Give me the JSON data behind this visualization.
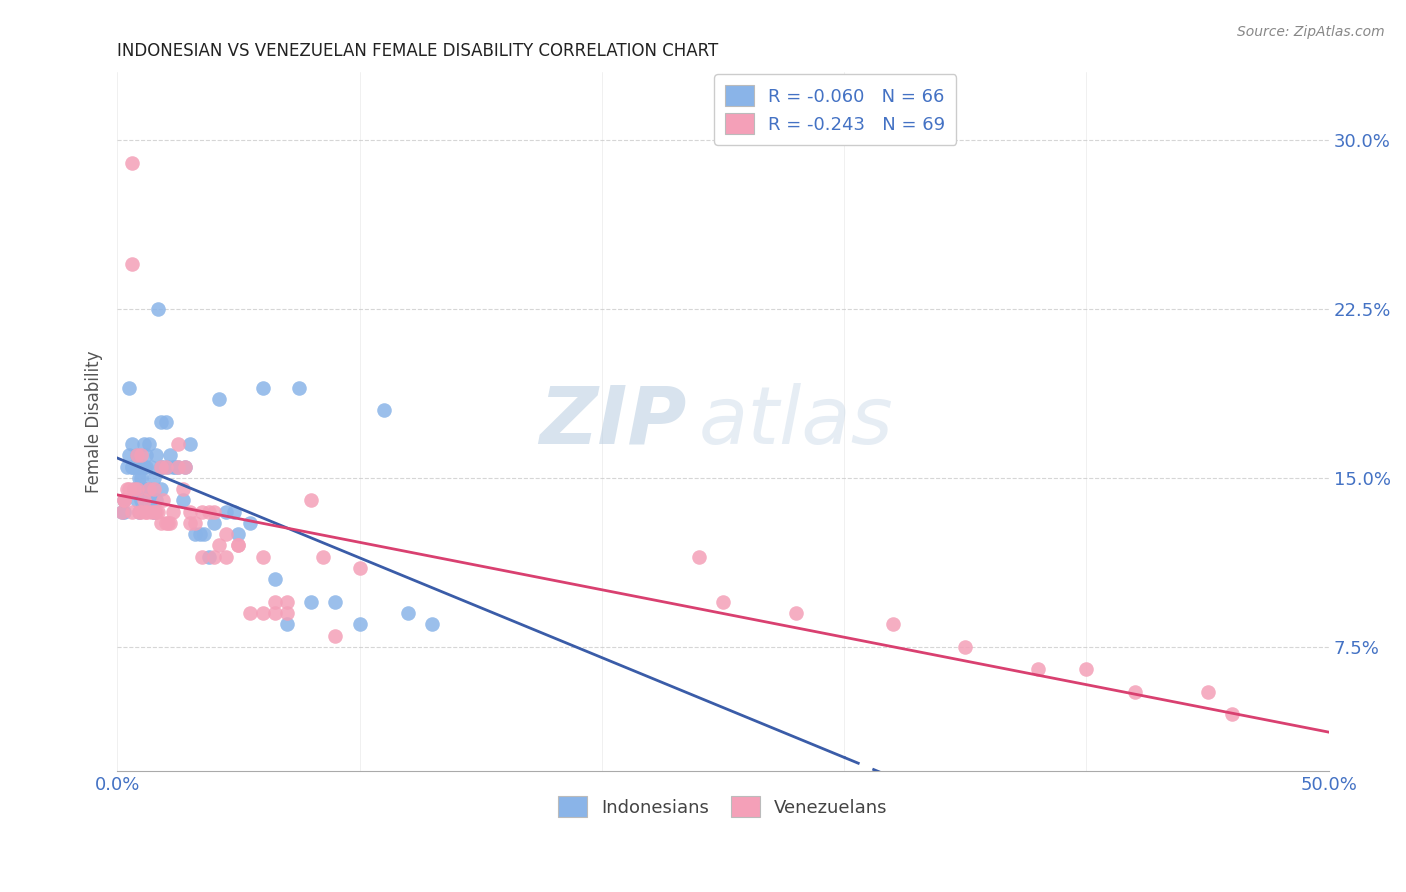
{
  "title": "INDONESIAN VS VENEZUELAN FEMALE DISABILITY CORRELATION CHART",
  "source": "Source: ZipAtlas.com",
  "ylabel": "Female Disability",
  "ytick_labels": [
    "7.5%",
    "15.0%",
    "22.5%",
    "30.0%"
  ],
  "ytick_values": [
    0.075,
    0.15,
    0.225,
    0.3
  ],
  "xlim": [
    0.0,
    0.5
  ],
  "ylim": [
    0.02,
    0.33
  ],
  "legend_label1": "R = -0.060   N = 66",
  "legend_label2": "R = -0.243   N = 69",
  "legend_bottom1": "Indonesians",
  "legend_bottom2": "Venezuelans",
  "color_indonesian": "#8ab4e8",
  "color_venezuelan": "#f4a0b8",
  "color_indonesian_line": "#3a5ca8",
  "color_venezuelan_line": "#d94070",
  "color_axis_labels": "#4472c4",
  "watermark_zip": "ZIP",
  "watermark_atlas": "atlas",
  "indonesian_x": [
    0.002,
    0.003,
    0.004,
    0.005,
    0.005,
    0.006,
    0.006,
    0.007,
    0.007,
    0.008,
    0.008,
    0.009,
    0.009,
    0.01,
    0.01,
    0.011,
    0.011,
    0.012,
    0.012,
    0.013,
    0.013,
    0.014,
    0.014,
    0.015,
    0.015,
    0.016,
    0.016,
    0.017,
    0.018,
    0.018,
    0.019,
    0.02,
    0.021,
    0.022,
    0.023,
    0.024,
    0.025,
    0.027,
    0.028,
    0.03,
    0.032,
    0.034,
    0.036,
    0.038,
    0.04,
    0.042,
    0.045,
    0.048,
    0.05,
    0.055,
    0.06,
    0.065,
    0.07,
    0.075,
    0.08,
    0.09,
    0.1,
    0.11,
    0.12,
    0.13,
    0.003,
    0.006,
    0.009,
    0.012,
    0.015,
    0.018
  ],
  "indonesian_y": [
    0.135,
    0.14,
    0.155,
    0.19,
    0.16,
    0.165,
    0.155,
    0.145,
    0.155,
    0.14,
    0.16,
    0.15,
    0.155,
    0.15,
    0.14,
    0.155,
    0.165,
    0.16,
    0.145,
    0.145,
    0.165,
    0.155,
    0.14,
    0.15,
    0.135,
    0.16,
    0.14,
    0.225,
    0.175,
    0.145,
    0.155,
    0.175,
    0.155,
    0.16,
    0.155,
    0.155,
    0.155,
    0.14,
    0.155,
    0.165,
    0.125,
    0.125,
    0.125,
    0.115,
    0.13,
    0.185,
    0.135,
    0.135,
    0.125,
    0.13,
    0.19,
    0.105,
    0.085,
    0.19,
    0.095,
    0.095,
    0.085,
    0.18,
    0.09,
    0.085,
    0.135,
    0.155,
    0.135,
    0.155,
    0.135,
    0.155
  ],
  "venezuelan_x": [
    0.002,
    0.003,
    0.004,
    0.005,
    0.006,
    0.006,
    0.007,
    0.008,
    0.009,
    0.01,
    0.011,
    0.012,
    0.013,
    0.014,
    0.015,
    0.016,
    0.017,
    0.018,
    0.019,
    0.02,
    0.021,
    0.022,
    0.023,
    0.025,
    0.027,
    0.028,
    0.03,
    0.032,
    0.035,
    0.038,
    0.04,
    0.042,
    0.045,
    0.045,
    0.05,
    0.055,
    0.06,
    0.065,
    0.07,
    0.08,
    0.09,
    0.1,
    0.003,
    0.006,
    0.008,
    0.01,
    0.012,
    0.015,
    0.018,
    0.02,
    0.025,
    0.03,
    0.035,
    0.04,
    0.05,
    0.06,
    0.065,
    0.07,
    0.085,
    0.24,
    0.25,
    0.28,
    0.32,
    0.35,
    0.38,
    0.4,
    0.42,
    0.45,
    0.46
  ],
  "venezuelan_y": [
    0.135,
    0.14,
    0.145,
    0.145,
    0.29,
    0.245,
    0.145,
    0.145,
    0.135,
    0.135,
    0.14,
    0.135,
    0.145,
    0.135,
    0.145,
    0.135,
    0.135,
    0.13,
    0.14,
    0.13,
    0.13,
    0.13,
    0.135,
    0.155,
    0.145,
    0.155,
    0.13,
    0.13,
    0.135,
    0.135,
    0.135,
    0.12,
    0.125,
    0.115,
    0.12,
    0.09,
    0.09,
    0.09,
    0.09,
    0.14,
    0.08,
    0.11,
    0.14,
    0.135,
    0.16,
    0.16,
    0.135,
    0.135,
    0.155,
    0.155,
    0.165,
    0.135,
    0.115,
    0.115,
    0.12,
    0.115,
    0.095,
    0.095,
    0.115,
    0.115,
    0.095,
    0.09,
    0.085,
    0.075,
    0.065,
    0.065,
    0.055,
    0.055,
    0.045
  ]
}
